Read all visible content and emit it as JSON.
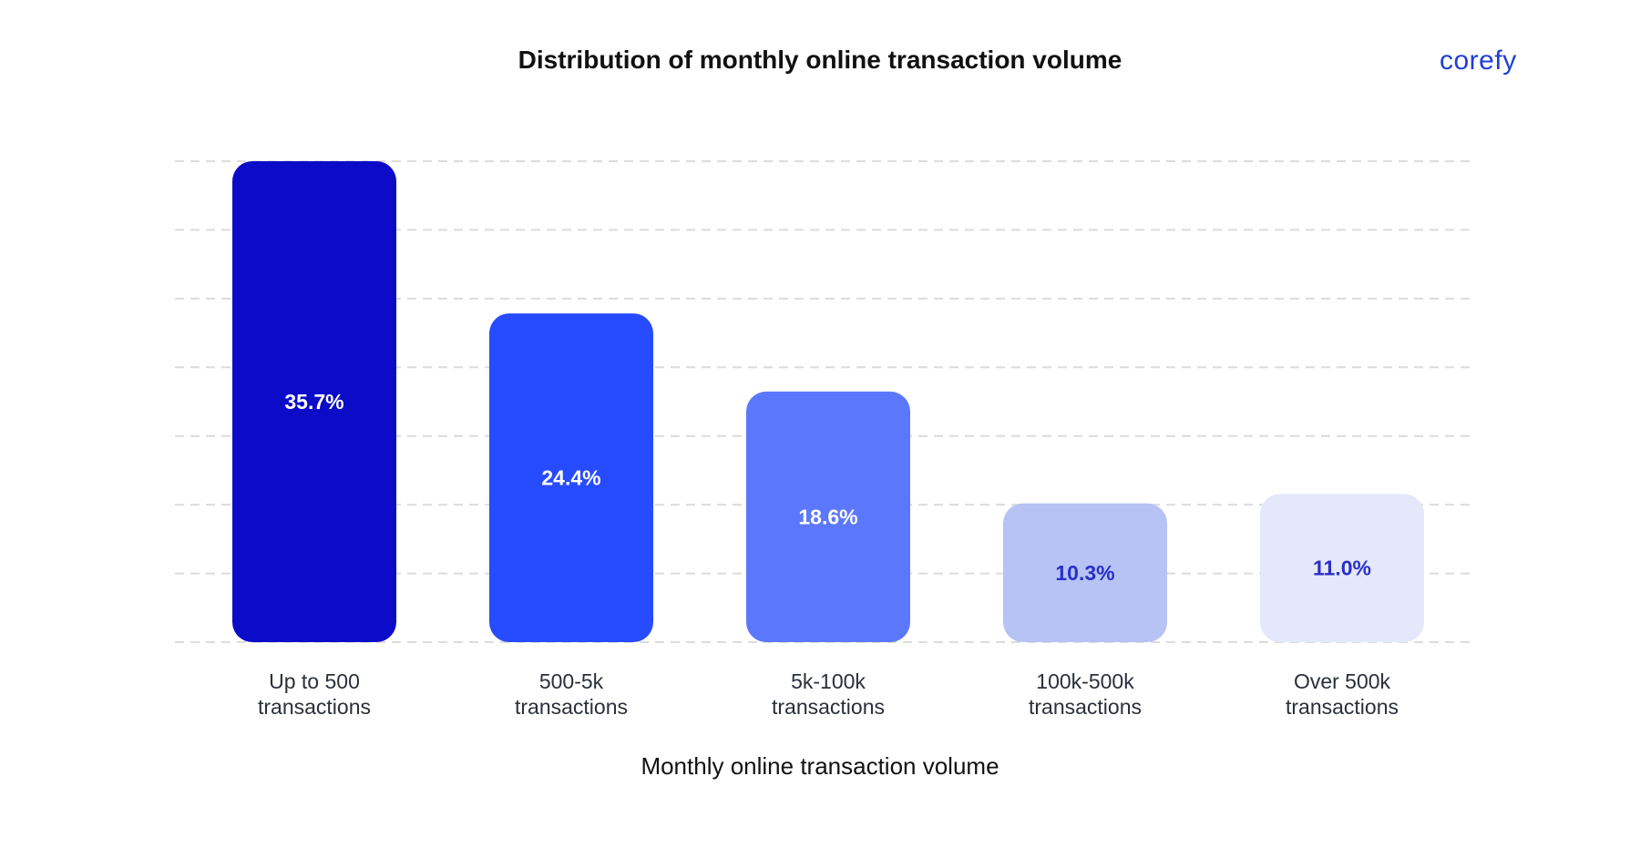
{
  "header": {
    "title": "Distribution of monthly online transaction volume",
    "brand": "corefy"
  },
  "chart_data": {
    "type": "bar",
    "categories": [
      [
        "Up to 500",
        "transactions"
      ],
      [
        "500-5k",
        "transactions"
      ],
      [
        "5k-100k",
        "transactions"
      ],
      [
        "100k-500k",
        "transactions"
      ],
      [
        "Over 500k",
        "transactions"
      ]
    ],
    "values": [
      35.7,
      24.4,
      18.6,
      10.3,
      11.0
    ],
    "data_labels": [
      "35.7%",
      "24.4%",
      "18.6%",
      "10.3%",
      "11.0%"
    ],
    "bar_colors": [
      "#0c0cc8",
      "#274bff",
      "#5b78fc",
      "#b7c2f5",
      "#e4e8fa"
    ],
    "label_colors": [
      "#ffffff",
      "#ffffff",
      "#ffffff",
      "#2a2fc7",
      "#2a2fc7"
    ],
    "xlabel": "Monthly online transaction volume",
    "ylabel": "",
    "ylim": [
      0,
      35.7
    ],
    "grid": true,
    "y_tick_labels_shown": false
  }
}
